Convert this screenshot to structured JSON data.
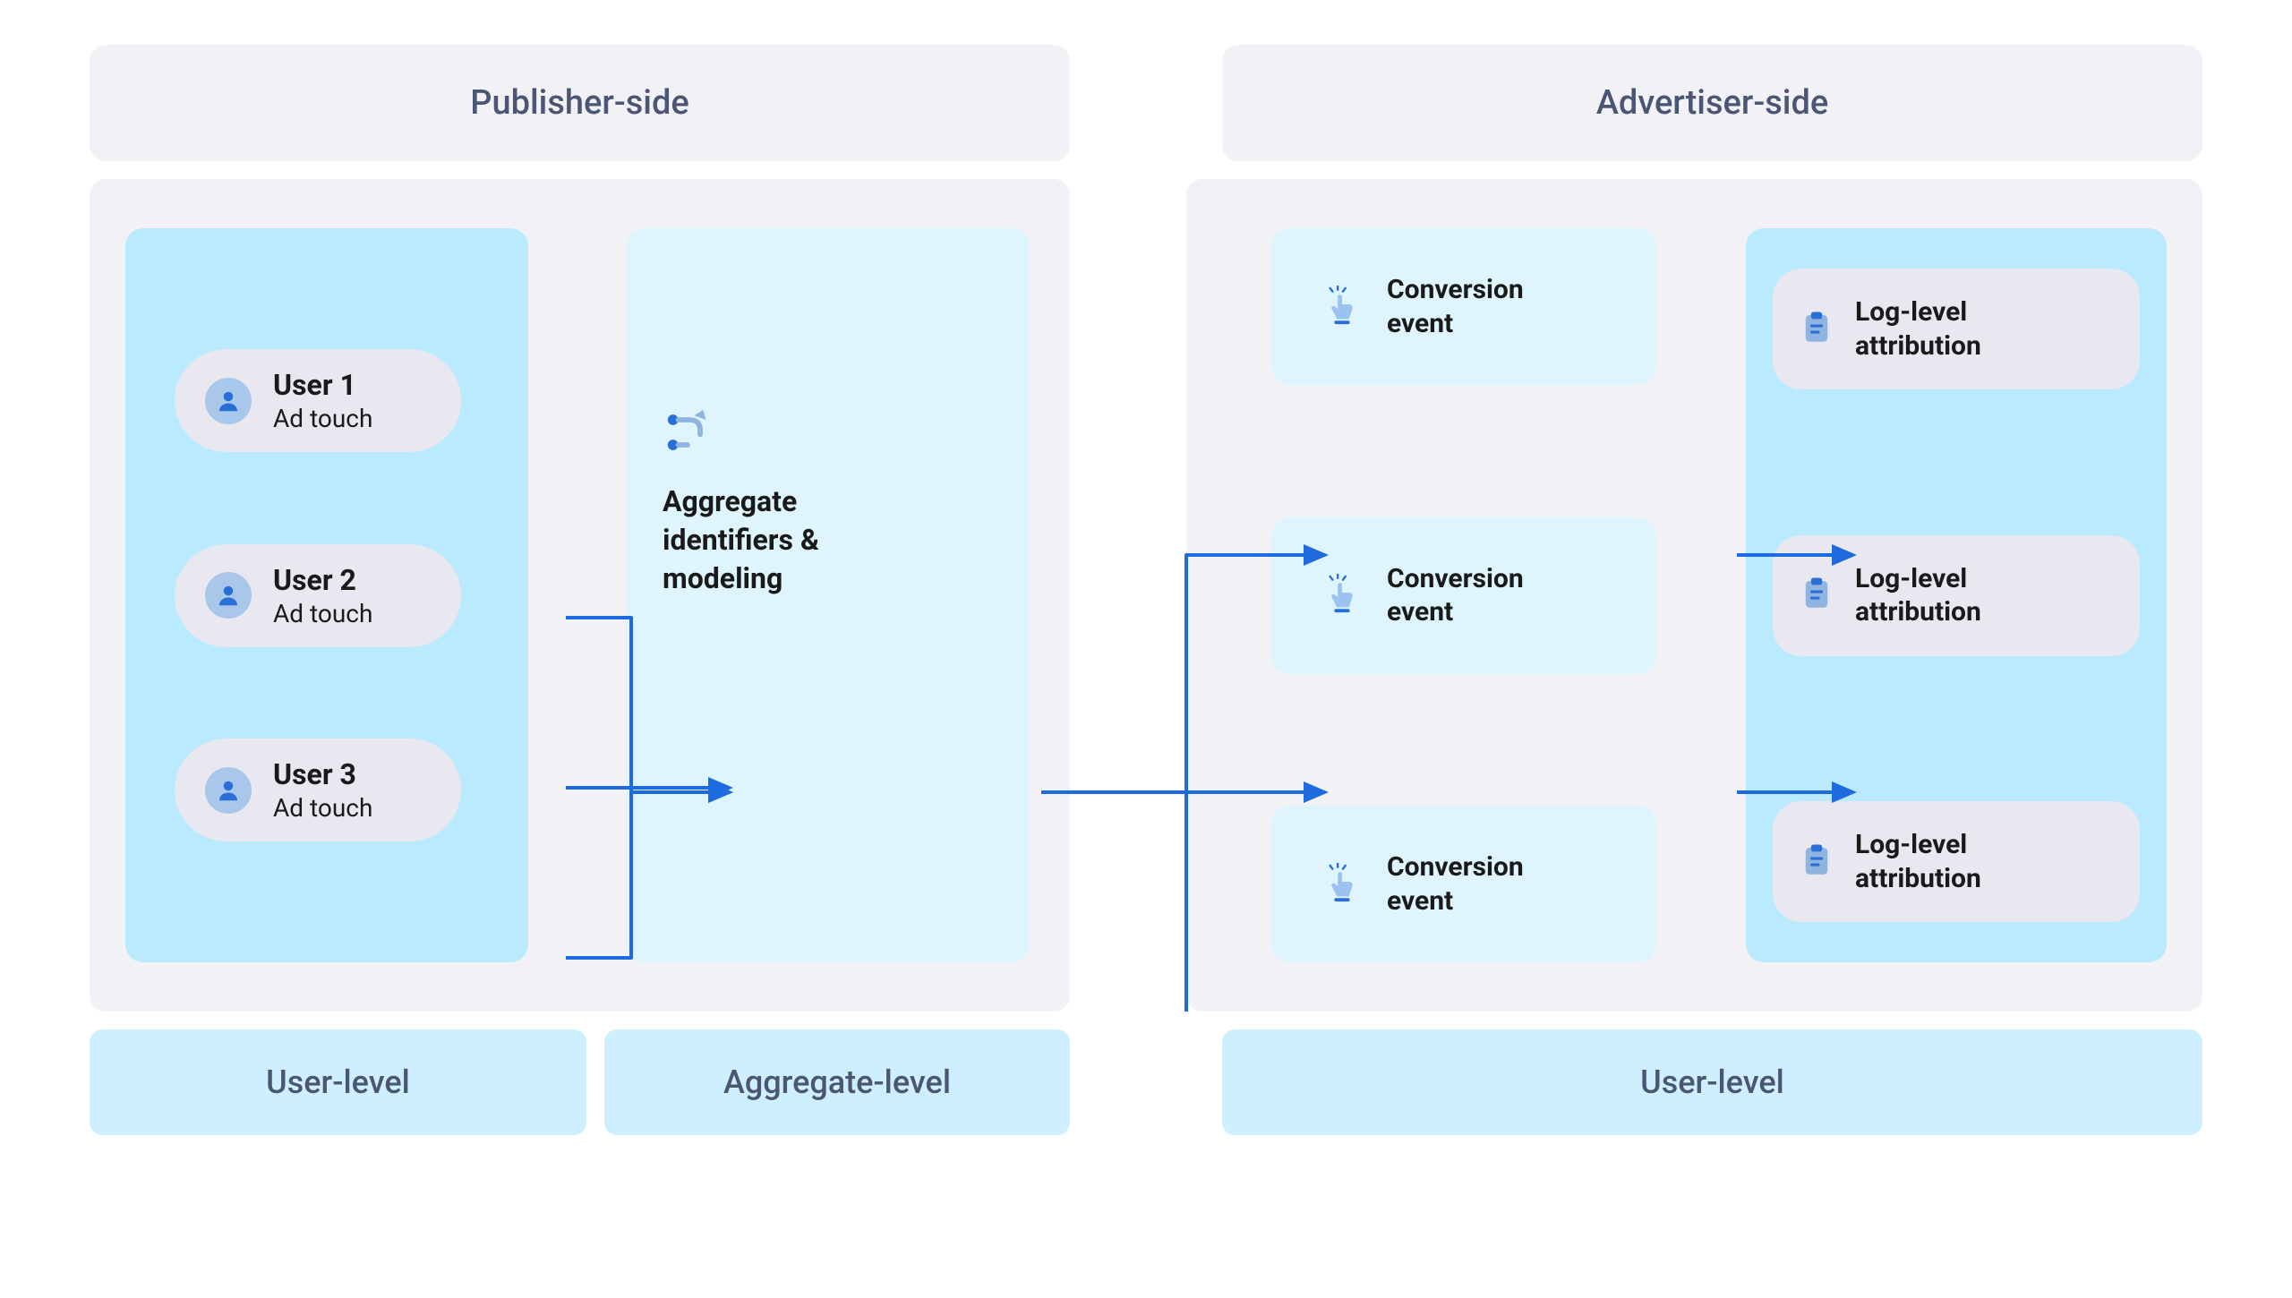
{
  "diagram": {
    "type": "flowchart",
    "background_color": "#ffffff",
    "panel_bg": "#f2f1f6",
    "accent_panel_bg": "#baeafe",
    "soft_panel_bg": "#dff5fe",
    "pill_bg": "#e9e7ef",
    "footer_bg": "#cdeffe",
    "header_text_color": "#4b5675",
    "arrow_color": "#1e6be0",
    "icon_primary": "#8fb4e0",
    "icon_accent": "#2a6fd6",
    "title_fontsize": 38,
    "body_fontsize": 30
  },
  "headers": {
    "left": "Publisher-side",
    "right": "Advertiser-side"
  },
  "footers": {
    "a": "User-level",
    "b": "Aggregate-level",
    "c": "User-level"
  },
  "users": [
    {
      "title": "User 1",
      "sub": "Ad touch"
    },
    {
      "title": "User 2",
      "sub": "Ad touch"
    },
    {
      "title": "User 3",
      "sub": "Ad touch"
    }
  ],
  "aggregate": {
    "line1": "Aggregate",
    "line2": "identifiers &",
    "line3": "modeling"
  },
  "conversions": [
    {
      "line1": "Conversion",
      "line2": "event"
    },
    {
      "line1": "Conversion",
      "line2": "event"
    },
    {
      "line1": "Conversion",
      "line2": "event"
    }
  ],
  "attributions": [
    {
      "line1": "Log-level",
      "line2": "attribution"
    },
    {
      "line1": "Log-level",
      "line2": "attribution"
    },
    {
      "line1": "Log-level",
      "line2": "attribution"
    }
  ],
  "arrows": {
    "color": "#1e6be0",
    "stroke_width": 4,
    "paths": [
      "M 532 490 H 605 V 685 H 715",
      "M 532 680 H 715",
      "M 532 870 H 605 V 685 H 715",
      "M 1063 685 H 1225 V 420 H 1380",
      "M 1063 685 H 1380",
      "M 1063 685 H 1225 V 955 H 1380",
      "M 1840 420 H 1970",
      "M 1840 685 H 1970",
      "M 1840 955 H 1970"
    ]
  }
}
